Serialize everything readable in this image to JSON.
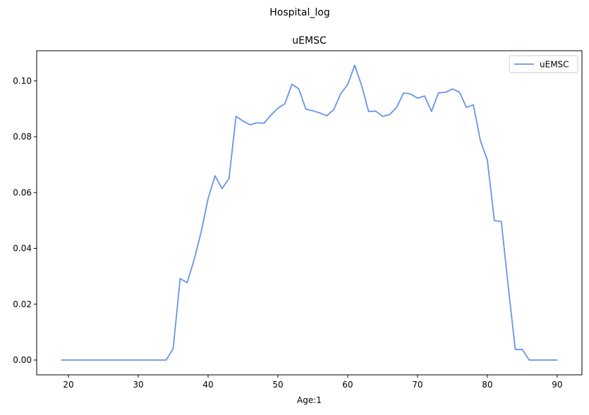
{
  "figure": {
    "suptitle": "Hospital_log"
  },
  "chart_data": {
    "type": "line",
    "title": "uEMSC",
    "xlabel": "Age:1",
    "ylabel": "",
    "xlim": [
      15.45,
      93.55
    ],
    "ylim": [
      -0.0053,
      0.1108
    ],
    "xticks": [
      20,
      30,
      40,
      50,
      60,
      70,
      80,
      90
    ],
    "yticks": [
      0.0,
      0.02,
      0.04,
      0.06,
      0.08,
      0.1
    ],
    "ytick_labels": [
      "0.00",
      "0.02",
      "0.04",
      "0.06",
      "0.08",
      "0.10"
    ],
    "grid": false,
    "legend": {
      "position": "top-right"
    },
    "series": [
      {
        "name": "uEMSC",
        "color": "#6495ED",
        "x": [
          19,
          20,
          21,
          22,
          23,
          24,
          25,
          26,
          27,
          28,
          29,
          30,
          31,
          32,
          33,
          34,
          35,
          36,
          37,
          38,
          39,
          40,
          41,
          42,
          43,
          44,
          45,
          46,
          47,
          48,
          49,
          50,
          51,
          52,
          53,
          54,
          55,
          56,
          57,
          58,
          59,
          60,
          61,
          62,
          63,
          64,
          65,
          66,
          67,
          68,
          69,
          70,
          71,
          72,
          73,
          74,
          75,
          76,
          77,
          78,
          79,
          80,
          81,
          82,
          83,
          84,
          85,
          86,
          87,
          88,
          89,
          90
        ],
        "y": [
          0,
          0,
          0,
          0,
          0,
          0,
          0,
          0,
          0,
          0,
          0,
          0,
          0,
          0,
          0,
          0,
          0.0041,
          0.0292,
          0.0277,
          0.0359,
          0.0458,
          0.0578,
          0.066,
          0.0614,
          0.065,
          0.0873,
          0.0856,
          0.0843,
          0.085,
          0.0848,
          0.0877,
          0.0902,
          0.0918,
          0.0988,
          0.0971,
          0.0899,
          0.0893,
          0.0885,
          0.0875,
          0.0897,
          0.0954,
          0.0987,
          0.1056,
          0.0983,
          0.089,
          0.0892,
          0.0873,
          0.0879,
          0.0905,
          0.0957,
          0.0953,
          0.0938,
          0.0946,
          0.0891,
          0.0957,
          0.0959,
          0.0971,
          0.096,
          0.0905,
          0.0914,
          0.0786,
          0.0717,
          0.05,
          0.0496,
          0.0262,
          0.0038,
          0.0038,
          0,
          0,
          0,
          0,
          0
        ]
      }
    ]
  }
}
